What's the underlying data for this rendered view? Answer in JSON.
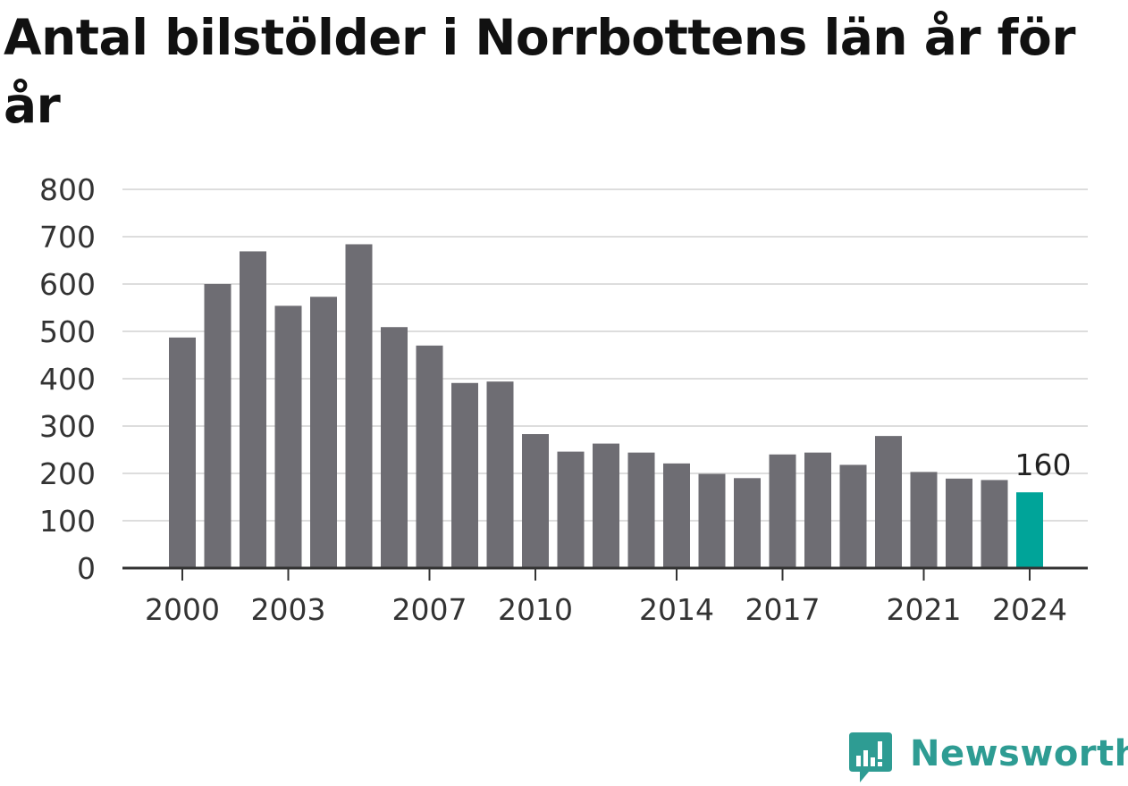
{
  "title": "Antal bilstölder i Norrbottens län år för år",
  "brand": {
    "name": "Newsworthy",
    "color": "#2e9c93"
  },
  "colors": {
    "bar": "#6e6d73",
    "highlight": "#00a499",
    "grid": "#dddddd",
    "axis": "#333333"
  },
  "chart_data": {
    "type": "bar",
    "title": "Antal bilstölder i Norrbottens län år för år",
    "xlabel": "",
    "ylabel": "",
    "categories": [
      "2000",
      "2001",
      "2002",
      "2003",
      "2004",
      "2005",
      "2006",
      "2007",
      "2008",
      "2009",
      "2010",
      "2011",
      "2012",
      "2013",
      "2014",
      "2015",
      "2016",
      "2017",
      "2018",
      "2019",
      "2020",
      "2021",
      "2022",
      "2023",
      "2024"
    ],
    "values": [
      487,
      600,
      669,
      554,
      573,
      684,
      509,
      470,
      391,
      394,
      283,
      246,
      263,
      244,
      221,
      199,
      190,
      240,
      244,
      218,
      279,
      203,
      189,
      186,
      160
    ],
    "x_tick_labels": [
      "2000",
      "2003",
      "2007",
      "2010",
      "2014",
      "2017",
      "2021",
      "2024"
    ],
    "y_ticks": [
      0,
      100,
      200,
      300,
      400,
      500,
      600,
      700,
      800
    ],
    "ylim": [
      0,
      800
    ],
    "grid": true,
    "highlight": {
      "category": "2024",
      "label": "160"
    }
  }
}
